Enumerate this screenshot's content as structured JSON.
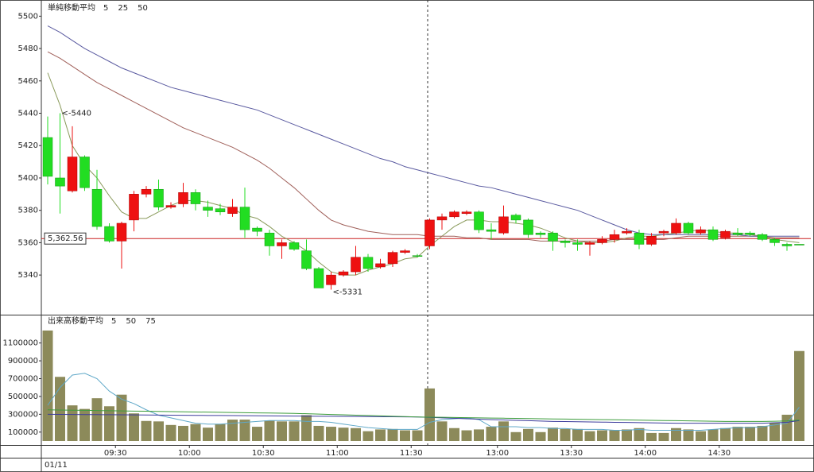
{
  "chart_data": [
    {
      "type": "candlestick",
      "legend_title": "単純移動平均",
      "ylim": [
        5316,
        5510
      ],
      "yticks": [
        5340,
        5360,
        5380,
        5400,
        5420,
        5440,
        5460,
        5480,
        5500
      ],
      "up_color": "#ee1111",
      "down_color": "#22dd22",
      "open": [
        5425,
        5400,
        5392,
        5413,
        5393,
        5370,
        5361,
        5374,
        5390,
        5393,
        5382,
        5384,
        5391,
        5382,
        5381,
        5378,
        5382,
        5369,
        5366,
        5358,
        5360,
        5355,
        5344,
        5334,
        5340,
        5342,
        5351,
        5345,
        5347,
        5354,
        5352,
        5358,
        5374,
        5376,
        5378,
        5379,
        5368,
        5366,
        5377,
        5374,
        5366,
        5366,
        5361,
        5360,
        5359,
        5360,
        5362,
        5366,
        5366,
        5359,
        5366,
        5366,
        5372,
        5366,
        5368,
        5363,
        5366,
        5366,
        5365,
        5362,
        5359,
        5359
      ],
      "high": [
        5438,
        5440,
        5432,
        5414,
        5405,
        5372,
        5373,
        5392,
        5395,
        5399,
        5385,
        5397,
        5393,
        5386,
        5384,
        5387,
        5394,
        5370,
        5368,
        5362,
        5361,
        5362,
        5345,
        5342,
        5343,
        5358,
        5353,
        5350,
        5355,
        5356,
        5353,
        5375,
        5378,
        5380,
        5380,
        5380,
        5372,
        5383,
        5378,
        5375,
        5367,
        5367,
        5362,
        5362,
        5361,
        5364,
        5368,
        5369,
        5368,
        5366,
        5368,
        5375,
        5373,
        5370,
        5370,
        5368,
        5369,
        5367,
        5366,
        5363,
        5360,
        5359
      ],
      "low": [
        5396,
        5378,
        5391,
        5392,
        5368,
        5360,
        5344,
        5367,
        5388,
        5380,
        5381,
        5382,
        5380,
        5376,
        5377,
        5376,
        5363,
        5364,
        5352,
        5350,
        5355,
        5343,
        5333,
        5331,
        5339,
        5340,
        5342,
        5344,
        5345,
        5353,
        5351,
        5356,
        5368,
        5375,
        5377,
        5366,
        5362,
        5365,
        5372,
        5363,
        5363,
        5355,
        5357,
        5355,
        5352,
        5359,
        5360,
        5365,
        5356,
        5358,
        5364,
        5365,
        5365,
        5365,
        5361,
        5362,
        5364,
        5364,
        5361,
        5358,
        5355,
        5359
      ],
      "close": [
        5401,
        5395,
        5413,
        5394,
        5370,
        5361,
        5372,
        5390,
        5393,
        5382,
        5383,
        5391,
        5384,
        5380,
        5379,
        5382,
        5368,
        5367,
        5358,
        5360,
        5356,
        5344,
        5332,
        5340,
        5342,
        5351,
        5344,
        5347,
        5354,
        5355,
        5352,
        5374,
        5376,
        5379,
        5379,
        5368,
        5367,
        5376,
        5374,
        5365,
        5365,
        5361,
        5360,
        5359,
        5360,
        5362,
        5365,
        5367,
        5359,
        5364,
        5367,
        5372,
        5366,
        5368,
        5362,
        5367,
        5365,
        5365,
        5362,
        5360,
        5358,
        5359
      ],
      "series": [
        {
          "name": "5",
          "color": "#8a9a5b",
          "values": [
            5465,
            5445,
            5420,
            5408,
            5400,
            5389,
            5379,
            5375,
            5375,
            5379,
            5383,
            5386,
            5386,
            5385,
            5383,
            5381,
            5377,
            5375,
            5370,
            5364,
            5360,
            5355,
            5348,
            5342,
            5340,
            5340,
            5343,
            5345,
            5347,
            5350,
            5351,
            5358,
            5364,
            5370,
            5374,
            5374,
            5373,
            5373,
            5372,
            5371,
            5369,
            5366,
            5363,
            5361,
            5360,
            5360,
            5361,
            5363,
            5364,
            5364,
            5365,
            5366,
            5367,
            5368,
            5367,
            5366,
            5366,
            5365,
            5364,
            5362,
            5361,
            5360
          ]
        },
        {
          "name": "25",
          "color": "#a0605a",
          "values": [
            5478,
            5474,
            5469,
            5464,
            5459,
            5455,
            5451,
            5447,
            5443,
            5439,
            5435,
            5431,
            5428,
            5425,
            5422,
            5419,
            5415,
            5411,
            5406,
            5400,
            5394,
            5387,
            5380,
            5374,
            5371,
            5369,
            5367,
            5366,
            5365,
            5365,
            5365,
            5364,
            5364,
            5364,
            5363,
            5363,
            5362,
            5362,
            5362,
            5362,
            5361,
            5361,
            5361,
            5361,
            5361,
            5361,
            5362,
            5362,
            5362,
            5362,
            5362,
            5363,
            5364,
            5364,
            5364,
            5364,
            5364,
            5364,
            5364,
            5363,
            5363,
            5363
          ]
        },
        {
          "name": "50",
          "color": "#5a5aa0",
          "values": [
            5494,
            5490,
            5485,
            5480,
            5476,
            5472,
            5468,
            5465,
            5462,
            5459,
            5456,
            5454,
            5452,
            5450,
            5448,
            5446,
            5444,
            5442,
            5439,
            5436,
            5433,
            5430,
            5427,
            5424,
            5421,
            5418,
            5415,
            5412,
            5410,
            5407,
            5405,
            5403,
            5401,
            5399,
            5397,
            5395,
            5394,
            5392,
            5390,
            5388,
            5386,
            5384,
            5382,
            5380,
            5377,
            5374,
            5371,
            5368,
            5366,
            5365,
            5365,
            5365,
            5365,
            5365,
            5365,
            5365,
            5365,
            5364,
            5364,
            5364,
            5364,
            5364
          ]
        }
      ],
      "price_line": {
        "value": 5362.56,
        "label": "5,362.56",
        "color": "#cc2222"
      },
      "annotations": [
        {
          "value": 5440,
          "label": "<-5440",
          "color": "#ee1111",
          "at": "high"
        },
        {
          "value": 5331,
          "label": "<-5331",
          "color": "#22bb22",
          "at": "low"
        }
      ]
    },
    {
      "type": "bar",
      "legend_title": "出来高移動平均",
      "ylim": [
        0,
        1400000
      ],
      "yticks": [
        100000,
        300000,
        500000,
        700000,
        900000,
        1100000
      ],
      "color": "#8c8a5a",
      "categories": [
        null,
        null,
        null,
        null,
        null,
        null,
        "09:30",
        null,
        null,
        null,
        null,
        null,
        "10:00",
        null,
        null,
        null,
        null,
        null,
        "10:30",
        null,
        null,
        null,
        null,
        null,
        "11:00",
        null,
        null,
        null,
        null,
        null,
        "11:30",
        null,
        null,
        null,
        null,
        null,
        null,
        "13:00",
        null,
        null,
        null,
        null,
        null,
        "13:30",
        null,
        null,
        null,
        null,
        null,
        "14:00",
        null,
        null,
        null,
        null,
        null,
        "14:30",
        null,
        null,
        null,
        null,
        null,
        null
      ],
      "values": [
        1240000,
        720000,
        400000,
        360000,
        480000,
        390000,
        520000,
        310000,
        225000,
        220000,
        180000,
        170000,
        190000,
        150000,
        190000,
        240000,
        240000,
        160000,
        230000,
        220000,
        220000,
        290000,
        170000,
        160000,
        150000,
        145000,
        110000,
        130000,
        135000,
        120000,
        120000,
        590000,
        220000,
        145000,
        120000,
        130000,
        160000,
        220000,
        100000,
        135000,
        100000,
        150000,
        135000,
        135000,
        110000,
        120000,
        120000,
        130000,
        145000,
        90000,
        90000,
        145000,
        130000,
        110000,
        130000,
        145000,
        160000,
        160000,
        170000,
        205000,
        295000,
        1010000
      ],
      "series": [
        {
          "name": "5",
          "color": "#5fa8c8",
          "values": [
            400000,
            600000,
            740000,
            760000,
            700000,
            560000,
            470000,
            420000,
            350000,
            290000,
            260000,
            230000,
            200000,
            190000,
            190000,
            200000,
            210000,
            220000,
            230000,
            230000,
            230000,
            220000,
            220000,
            210000,
            190000,
            170000,
            150000,
            140000,
            130000,
            130000,
            130000,
            210000,
            240000,
            250000,
            260000,
            240000,
            160000,
            160000,
            160000,
            150000,
            150000,
            140000,
            140000,
            130000,
            130000,
            130000,
            120000,
            120000,
            130000,
            120000,
            120000,
            120000,
            120000,
            120000,
            130000,
            140000,
            150000,
            150000,
            160000,
            180000,
            200000,
            380000
          ]
        },
        {
          "name": "50",
          "color": "#3c3c9c",
          "values": [
            300000,
            299000,
            298000,
            297000,
            296000,
            295000,
            294000,
            293000,
            292000,
            291000,
            290000,
            289000,
            288000,
            287000,
            286000,
            285000,
            284000,
            283000,
            282000,
            281000,
            280000,
            279000,
            278000,
            277000,
            276000,
            275000,
            274000,
            273000,
            272000,
            271000,
            270000,
            265000,
            260000,
            255000,
            250000,
            245000,
            240000,
            236000,
            232000,
            228000,
            224000,
            220000,
            218000,
            216000,
            214000,
            212000,
            210000,
            208000,
            206000,
            204000,
            202000,
            200000,
            200000,
            200000,
            200000,
            200000,
            200000,
            200000,
            200000,
            205000,
            210000,
            230000
          ]
        },
        {
          "name": "75",
          "color": "#3c9c3c",
          "values": [
            350000,
            348000,
            346000,
            344000,
            342000,
            340000,
            338000,
            336000,
            334000,
            332000,
            330000,
            328000,
            326000,
            324000,
            322000,
            320000,
            318000,
            316000,
            314000,
            312000,
            310000,
            306000,
            302000,
            298000,
            294000,
            290000,
            286000,
            282000,
            278000,
            274000,
            270000,
            268000,
            266000,
            264000,
            262000,
            260000,
            258000,
            256000,
            254000,
            252000,
            250000,
            248000,
            246000,
            244000,
            242000,
            240000,
            238000,
            236000,
            234000,
            232000,
            230000,
            228000,
            226000,
            224000,
            222000,
            220000,
            220000,
            220000,
            220000,
            222000,
            225000,
            235000
          ]
        }
      ]
    }
  ],
  "date": "01/11"
}
